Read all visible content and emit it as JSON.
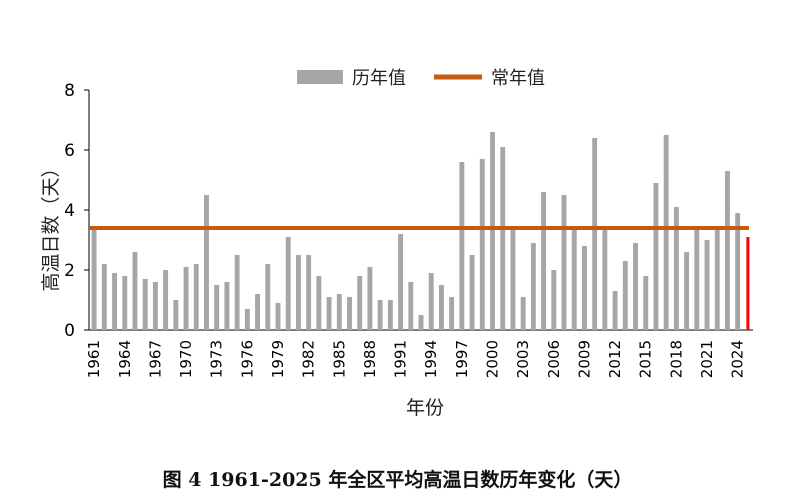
{
  "chart_data": {
    "type": "bar",
    "caption": "图 4  1961-2025 年全区平均高温日数历年变化（天）",
    "xlabel": "年份",
    "ylabel": "高温日数（天）",
    "ylim": [
      0,
      8
    ],
    "yticks": [
      "0",
      "2",
      "4",
      "6",
      "8"
    ],
    "legend": {
      "bar_label": "历年值",
      "line_label": "常年值",
      "position": "top"
    },
    "colors": {
      "bar": "#a6a6a6",
      "line": "#c55a11",
      "highlight": "#ff0000"
    },
    "normal_value": 3.4,
    "years": [
      1961,
      1962,
      1963,
      1964,
      1965,
      1966,
      1967,
      1968,
      1969,
      1970,
      1971,
      1972,
      1973,
      1974,
      1975,
      1976,
      1977,
      1978,
      1979,
      1980,
      1981,
      1982,
      1983,
      1984,
      1985,
      1986,
      1987,
      1988,
      1989,
      1990,
      1991,
      1992,
      1993,
      1994,
      1995,
      1996,
      1997,
      1998,
      1999,
      2000,
      2001,
      2002,
      2003,
      2004,
      2005,
      2006,
      2007,
      2008,
      2009,
      2010,
      2011,
      2012,
      2013,
      2014,
      2015,
      2016,
      2017,
      2018,
      2019,
      2020,
      2021,
      2022,
      2023,
      2024,
      2025
    ],
    "tick_labels": [
      "1961",
      "1964",
      "1967",
      "1970",
      "1973",
      "1976",
      "1979",
      "1982",
      "1985",
      "1988",
      "1991",
      "1994",
      "1997",
      "2000",
      "2003",
      "2006",
      "2009",
      "2012",
      "2015",
      "2018",
      "2021",
      "2024"
    ],
    "values": [
      3.4,
      2.2,
      1.9,
      1.8,
      2.6,
      1.7,
      1.6,
      2.0,
      1.0,
      2.1,
      2.2,
      4.5,
      1.5,
      1.6,
      2.5,
      0.7,
      1.2,
      2.2,
      0.9,
      3.1,
      2.5,
      2.5,
      1.8,
      1.1,
      1.2,
      1.1,
      1.8,
      2.1,
      1.0,
      1.0,
      3.2,
      1.6,
      0.5,
      1.9,
      1.5,
      1.1,
      5.6,
      2.5,
      5.7,
      6.6,
      6.1,
      3.4,
      1.1,
      2.9,
      4.6,
      2.0,
      4.5,
      3.4,
      2.8,
      6.4,
      3.4,
      1.3,
      2.3,
      2.9,
      1.8,
      4.9,
      6.5,
      4.1,
      2.6,
      3.4,
      3.0,
      3.4,
      5.3,
      3.9,
      3.1
    ]
  }
}
